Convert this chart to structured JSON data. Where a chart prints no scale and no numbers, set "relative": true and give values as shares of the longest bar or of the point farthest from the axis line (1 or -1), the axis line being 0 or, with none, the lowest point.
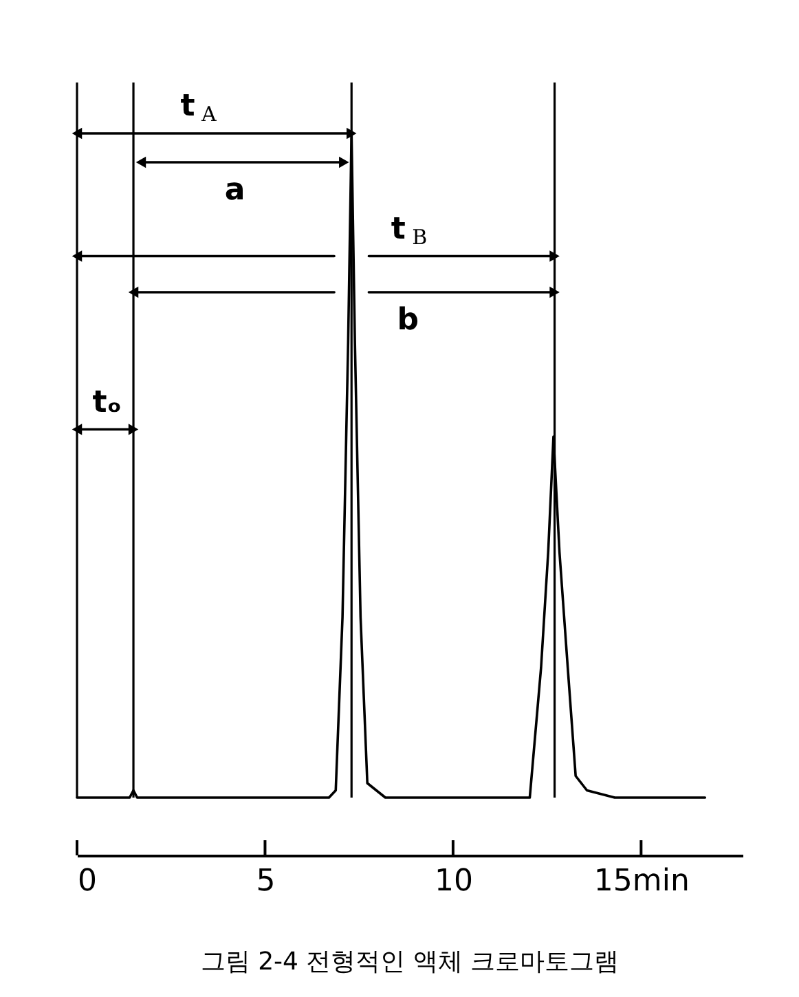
{
  "chart_data": {
    "type": "line",
    "title": "그림 2-4 전형적인 액체 크로마토그램",
    "relative": true,
    "xlim": [
      0,
      17.7
    ],
    "xticks": [
      0,
      5,
      10,
      {
        "value": 15,
        "label": "15min"
      }
    ],
    "series": [
      {
        "color": "#000000",
        "x": [
          0,
          1.4,
          1.5,
          1.6,
          6.7,
          6.88,
          7.06,
          7.21,
          7.3,
          7.39,
          7.54,
          7.72,
          8.2,
          12.04,
          12.34,
          12.53,
          12.67,
          12.83,
          13.05,
          13.26,
          13.56,
          14.3,
          16.7
        ],
        "values": [
          0.08,
          0.08,
          0.09,
          0.08,
          0.08,
          0.09,
          0.33,
          0.71,
          1,
          0.71,
          0.33,
          0.1,
          0.08,
          0.08,
          0.26,
          0.42,
          0.58,
          0.42,
          0.26,
          0.11,
          0.09,
          0.08,
          0.08
        ]
      },
      {
        "color": "#000000",
        "marker": "triangle",
        "x": [
          0,
          7.3
        ],
        "values": [
          1,
          1
        ]
      },
      {
        "color": "#000000",
        "marker": "triangle",
        "x": [
          1.7,
          7.1
        ],
        "values": [
          0.96,
          0.96
        ]
      },
      {
        "color": "#000000",
        "marker": "triangle",
        "x": [
          0,
          6.84,
          7.3,
          7.76,
          12.7
        ],
        "values": [
          0.83,
          0.83,
          null,
          0.83,
          0.83
        ]
      },
      {
        "color": "#000000",
        "marker": "triangle",
        "x": [
          1.5,
          6.84,
          7.3,
          7.76,
          12.7
        ],
        "values": [
          0.78,
          0.78,
          null,
          0.78,
          0.78
        ]
      },
      {
        "color": "#000000",
        "marker": "triangle",
        "x": [
          0,
          1.5
        ],
        "values": [
          0.59,
          0.59
        ]
      }
    ],
    "ref_lines": [
      {
        "axis": "x",
        "value": 0
      },
      {
        "axis": "x",
        "value": 1.5
      },
      {
        "axis": "x",
        "value": 7.3
      },
      {
        "axis": "x",
        "value": 12.7
      }
    ],
    "annotations": [
      {
        "text": "t$_{A}$",
        "x": 3.2,
        "y": 1
      },
      {
        "text": "a",
        "x": 4.2,
        "y": 0.96
      },
      {
        "text": "t$_{B}$",
        "x": 8.8,
        "y": 0.83
      },
      {
        "text": "b",
        "x": 8.8,
        "y": 0.78
      },
      {
        "text": "tₒ",
        "x": 0.8,
        "y": 0.59
      }
    ]
  }
}
